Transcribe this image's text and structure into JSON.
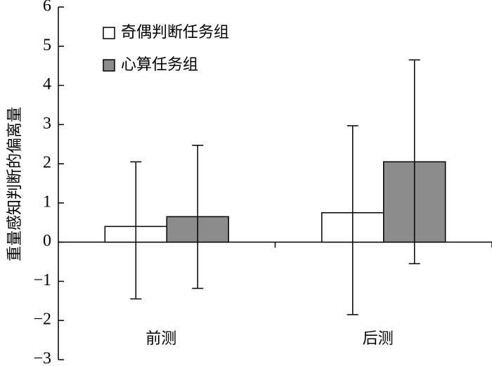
{
  "chart_data": {
    "type": "bar",
    "ylabel": "重量感知判断的偏离量",
    "categories": [
      "前测",
      "后测"
    ],
    "series": [
      {
        "name": "奇偶判断任务组",
        "color": "#ffffff",
        "values": [
          0.4,
          0.75
        ],
        "error_upper": [
          2.05,
          2.97
        ],
        "error_lower": [
          -1.45,
          -1.85
        ]
      },
      {
        "name": "心算任务组",
        "color": "#8c8c8c",
        "values": [
          0.65,
          2.05
        ],
        "error_upper": [
          2.47,
          4.65
        ],
        "error_lower": [
          -1.18,
          -0.55
        ]
      }
    ],
    "ylim": [
      -3,
      6
    ],
    "yticks": [
      {
        "value": -3,
        "label": "−3"
      },
      {
        "value": -2,
        "label": "−2"
      },
      {
        "value": -1,
        "label": "−1"
      },
      0,
      1,
      2,
      3,
      4,
      5,
      6
    ],
    "grid": false,
    "legend": "upper left"
  }
}
